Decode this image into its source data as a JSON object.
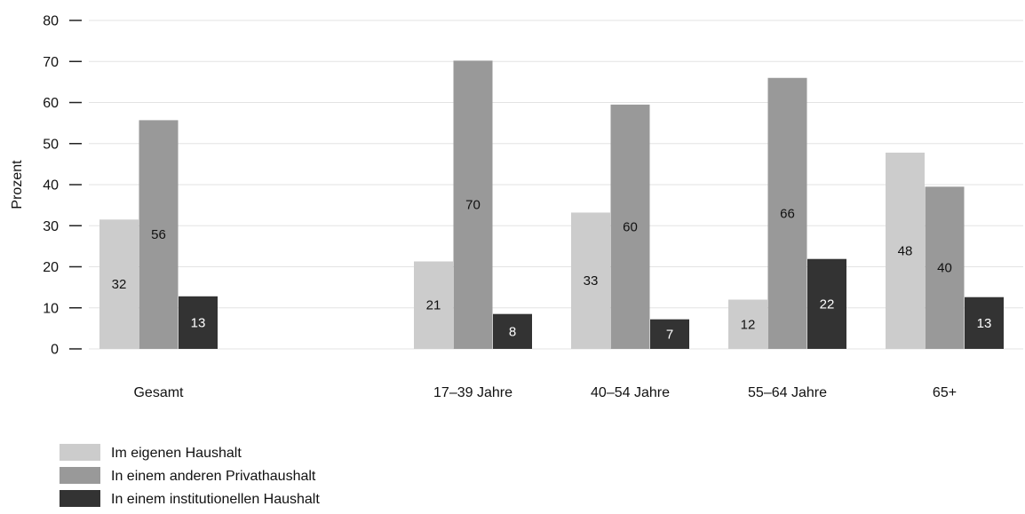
{
  "chart_data": {
    "type": "bar",
    "title": "",
    "xlabel": "",
    "ylabel": "Prozent",
    "ylim": [
      0,
      80
    ],
    "yticks": [
      0,
      10,
      20,
      30,
      40,
      50,
      60,
      70,
      80
    ],
    "grid": true,
    "legend_position": "bottom-left",
    "categories": [
      "Gesamt",
      "",
      "17–39 Jahre",
      "40–54 Jahre",
      "55–64 Jahre",
      "65+"
    ],
    "series": [
      {
        "name": "Im eigenen Haushalt",
        "color": "#cccccc",
        "label_color": "#111111",
        "values": [
          31.5,
          null,
          21.3,
          33.2,
          12.0,
          47.8
        ],
        "labels": [
          "32",
          "",
          "21",
          "33",
          "12",
          "48"
        ]
      },
      {
        "name": "In einem anderen Privathaushalt",
        "color": "#999999",
        "label_color": "#111111",
        "values": [
          55.7,
          null,
          70.2,
          59.5,
          66.0,
          39.5
        ],
        "labels": [
          "56",
          "",
          "70",
          "60",
          "66",
          "40"
        ]
      },
      {
        "name": "In einem institutionellen Haushalt",
        "color": "#333333",
        "label_color": "#ffffff",
        "values": [
          12.8,
          null,
          8.5,
          7.2,
          21.9,
          12.6
        ],
        "labels": [
          "13",
          "",
          "8",
          "7",
          "22",
          "13"
        ]
      }
    ]
  }
}
